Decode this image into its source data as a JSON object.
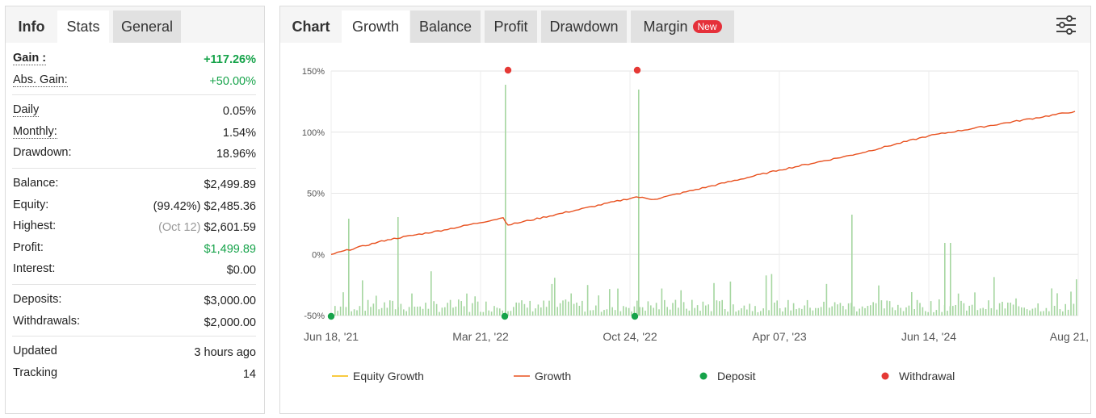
{
  "left_tabs": [
    "Info",
    "Stats",
    "General"
  ],
  "stats": {
    "gain": {
      "label": "Gain :",
      "value": "+117.26%"
    },
    "abs_gain": {
      "label": "Abs. Gain:",
      "value": "+50.00%"
    },
    "daily": {
      "label": "Daily",
      "value": "0.05%"
    },
    "monthly": {
      "label": "Monthly:",
      "value": "1.54%"
    },
    "drawdown": {
      "label": "Drawdown:",
      "value": "18.96%"
    },
    "balance": {
      "label": "Balance:",
      "value": "$2,499.89"
    },
    "equity": {
      "label": "Equity:",
      "sub": "(99.42%)",
      "value": "$2,485.36"
    },
    "highest": {
      "label": "Highest:",
      "sub": "(Oct 12)",
      "value": "$2,601.59"
    },
    "profit": {
      "label": "Profit:",
      "value": "$1,499.89"
    },
    "interest": {
      "label": "Interest:",
      "value": "$0.00"
    },
    "deposits": {
      "label": "Deposits:",
      "value": "$3,000.00"
    },
    "withdrawals": {
      "label": "Withdrawals:",
      "value": "$2,000.00"
    },
    "updated": {
      "label": "Updated",
      "value": "3 hours ago"
    },
    "tracking": {
      "label": "Tracking",
      "value": "14"
    }
  },
  "right_tabs": [
    "Chart",
    "Growth",
    "Balance",
    "Profit",
    "Drawdown",
    "Margin"
  ],
  "badge": "New",
  "colors": {
    "growth": "#e8501e",
    "equity": "#f5b800",
    "deposit": "#16a34a",
    "withdrawal": "#e53935",
    "bars": "#a5d6a0",
    "positive": "#16a34a"
  },
  "chart_data": {
    "type": "line",
    "x_tick_labels": [
      "Jun 18, '21",
      "Mar 21, '22",
      "Oct 24, '22",
      "Apr 07, '23",
      "Jun 14, '24",
      "Aug 21, '25"
    ],
    "y_tick_labels": [
      "150%",
      "100%",
      "50%",
      "0%",
      "-50%"
    ],
    "ylim": [
      -50,
      150
    ],
    "grid": true,
    "legend": [
      "Equity Growth",
      "Growth",
      "Deposit",
      "Withdrawal"
    ],
    "legend_position": "bottom",
    "series": [
      {
        "name": "Growth",
        "x": [
          "Jun 18, '21",
          "Sep 2021",
          "Dec 2021",
          "Mar 21, '22",
          "Apr 2022",
          "Oct 24, '22",
          "Nov 2022",
          "Apr 07, '23",
          "Oct 2023",
          "Jun 14, '24",
          "Aug 21, '25"
        ],
        "values": [
          0,
          12,
          20,
          30,
          24,
          47,
          45,
          69,
          82,
          97,
          117
        ]
      }
    ],
    "deposits": [
      "Jun 18, '21",
      "Mar 21, '22",
      "Oct 24, '22"
    ],
    "withdrawals": [
      "Mar 21, '22",
      "Oct 24, '22"
    ]
  }
}
